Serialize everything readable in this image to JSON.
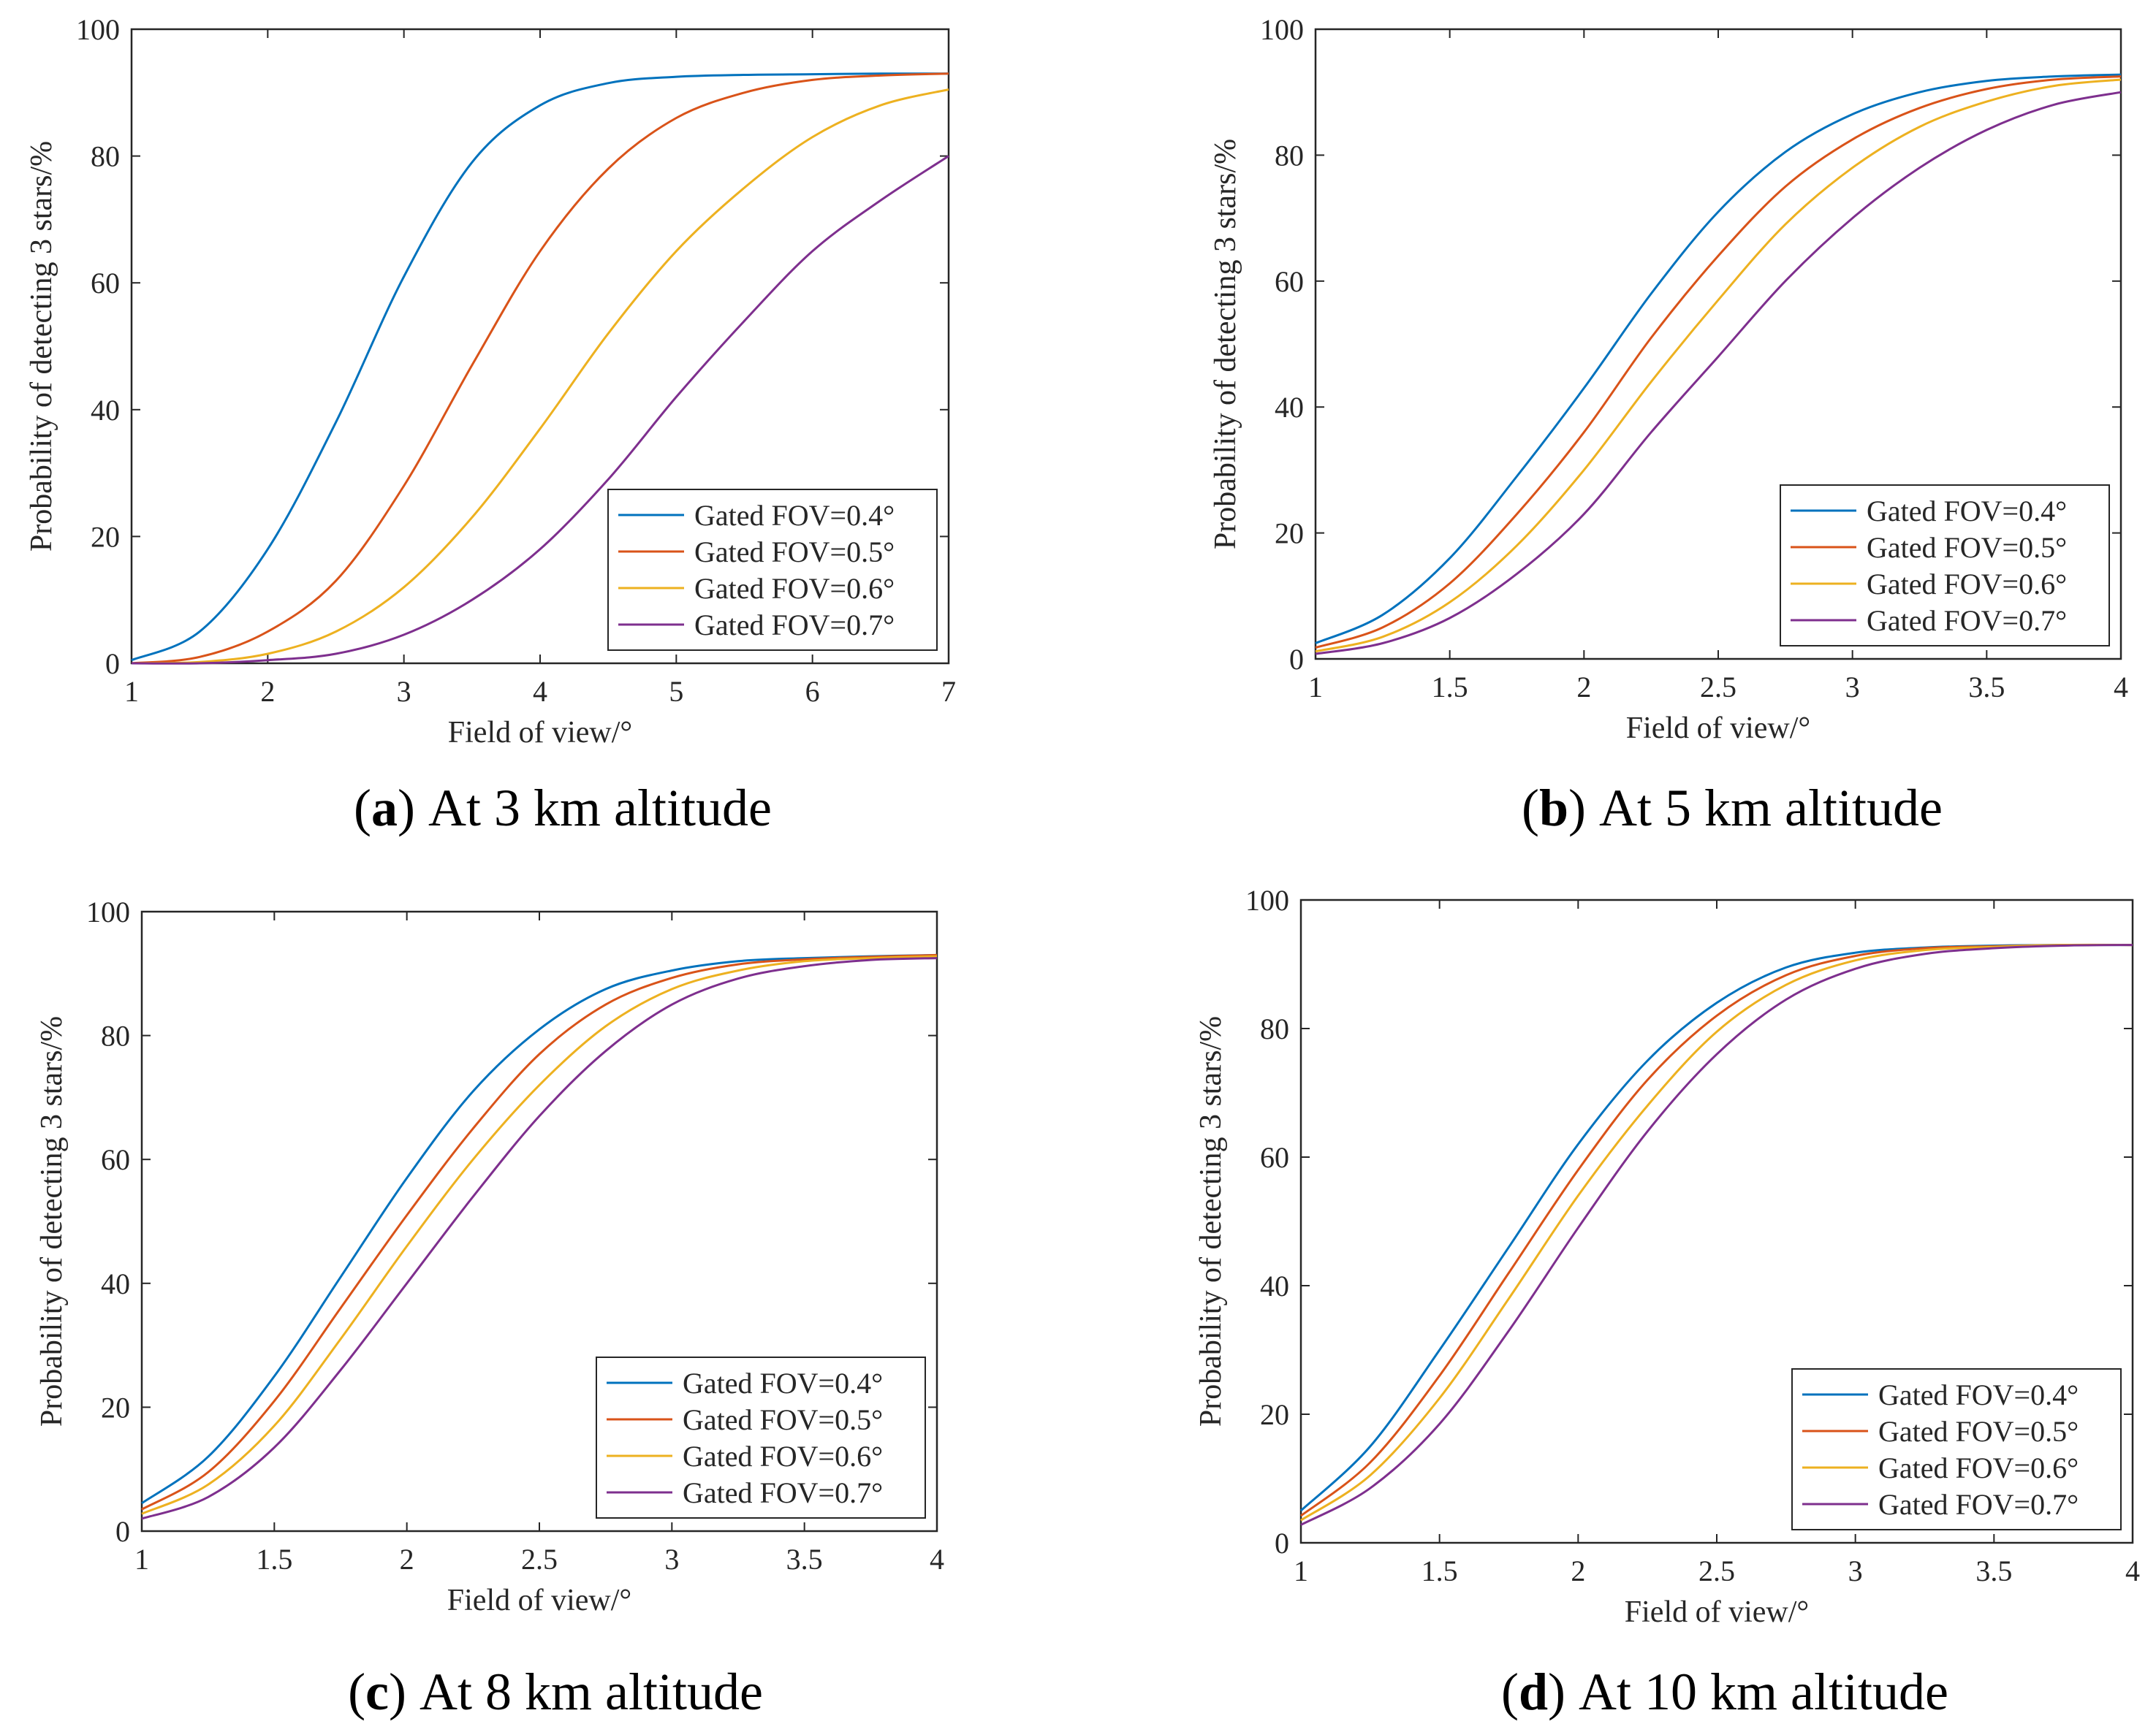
{
  "colors": {
    "axis": "#262626",
    "series": [
      "#0072BD",
      "#D95319",
      "#EDB120",
      "#7E2F8E"
    ]
  },
  "chart_data": [
    {
      "type": "line",
      "panel": "a",
      "caption_label": "a",
      "caption_text": " At 3 km altitude",
      "title": "",
      "xlabel": "Field of view/°",
      "ylabel": "Probability of detecting 3 stars/%",
      "xlim": [
        1,
        7
      ],
      "ylim": [
        0,
        100
      ],
      "xticks": [
        1,
        2,
        3,
        4,
        5,
        6,
        7
      ],
      "xtick_labels": [
        "1",
        "2",
        "3",
        "4",
        "5",
        "6",
        "7"
      ],
      "yticks": [
        0,
        20,
        40,
        60,
        80,
        100
      ],
      "ytick_labels": [
        "0",
        "20",
        "40",
        "60",
        "80",
        "100"
      ],
      "grid": false,
      "legend_position": "bottom-right",
      "series": [
        {
          "name": "Gated FOV=0.4°",
          "x": [
            1,
            1.5,
            2,
            2.5,
            3,
            3.5,
            4,
            4.5,
            5,
            5.5,
            6,
            6.5,
            7
          ],
          "values": [
            0.5,
            5,
            18,
            38,
            61,
            79,
            88,
            91.5,
            92.5,
            92.8,
            92.9,
            93,
            93
          ]
        },
        {
          "name": "Gated FOV=0.5°",
          "x": [
            1,
            1.5,
            2,
            2.5,
            3,
            3.5,
            4,
            4.5,
            5,
            5.5,
            6,
            6.5,
            7
          ],
          "values": [
            0,
            1,
            5,
            13,
            28,
            47,
            65,
            78,
            86,
            90,
            92,
            92.7,
            93
          ]
        },
        {
          "name": "Gated FOV=0.6°",
          "x": [
            1,
            1.5,
            2,
            2.5,
            3,
            3.5,
            4,
            4.5,
            5,
            5.5,
            6,
            6.5,
            7
          ],
          "values": [
            0,
            0.2,
            1.5,
            5,
            12,
            23,
            37,
            52,
            65,
            75,
            83,
            88,
            90.5
          ]
        },
        {
          "name": "Gated FOV=0.7°",
          "x": [
            1,
            1.5,
            2,
            2.5,
            3,
            3.5,
            4,
            4.5,
            5,
            5.5,
            6,
            6.5,
            7
          ],
          "values": [
            0,
            0,
            0.5,
            1.5,
            4.5,
            10,
            18,
            29,
            42,
            54,
            65,
            73,
            80
          ]
        }
      ]
    },
    {
      "type": "line",
      "panel": "b",
      "caption_label": "b",
      "caption_text": " At 5 km altitude",
      "title": "",
      "xlabel": "Field of view/°",
      "ylabel": "Probability of detecting 3 stars/%",
      "xlim": [
        1,
        4
      ],
      "ylim": [
        0,
        100
      ],
      "xticks": [
        1,
        1.5,
        2,
        2.5,
        3,
        3.5,
        4
      ],
      "xtick_labels": [
        "1",
        "1.5",
        "2",
        "2.5",
        "3",
        "3.5",
        "4"
      ],
      "yticks": [
        0,
        20,
        40,
        60,
        80,
        100
      ],
      "ytick_labels": [
        "0",
        "20",
        "40",
        "60",
        "80",
        "100"
      ],
      "grid": false,
      "legend_position": "bottom-right",
      "series": [
        {
          "name": "Gated FOV=0.4°",
          "x": [
            1,
            1.25,
            1.5,
            1.75,
            2,
            2.25,
            2.5,
            2.75,
            3,
            3.25,
            3.5,
            3.75,
            4
          ],
          "values": [
            2.5,
            7,
            16,
            29,
            43,
            58,
            71,
            80.5,
            86.5,
            90,
            91.8,
            92.5,
            92.8
          ]
        },
        {
          "name": "Gated FOV=0.5°",
          "x": [
            1,
            1.25,
            1.5,
            1.75,
            2,
            2.25,
            2.5,
            2.75,
            3,
            3.25,
            3.5,
            3.75,
            4
          ],
          "values": [
            1.8,
            5,
            12,
            23,
            36,
            51,
            64,
            75,
            82.5,
            87.5,
            90.5,
            92,
            92.5
          ]
        },
        {
          "name": "Gated FOV=0.6°",
          "x": [
            1,
            1.25,
            1.5,
            1.75,
            2,
            2.25,
            2.5,
            2.75,
            3,
            3.25,
            3.5,
            3.75,
            4
          ],
          "values": [
            1.2,
            3.5,
            9,
            18,
            30,
            44,
            57,
            69,
            78,
            84.5,
            88.5,
            91,
            92
          ]
        },
        {
          "name": "Gated FOV=0.7°",
          "x": [
            1,
            1.25,
            1.5,
            1.75,
            2,
            2.25,
            2.5,
            2.75,
            3,
            3.25,
            3.5,
            3.75,
            4
          ],
          "values": [
            0.8,
            2.5,
            6.5,
            13.5,
            23,
            36,
            48,
            60,
            70,
            78,
            84,
            88,
            90
          ]
        }
      ]
    },
    {
      "type": "line",
      "panel": "c",
      "caption_label": "c",
      "caption_text": " At 8 km altitude",
      "title": "",
      "xlabel": "Field of view/°",
      "ylabel": "Probability of detecting 3 stars/%",
      "xlim": [
        1,
        4
      ],
      "ylim": [
        0,
        100
      ],
      "xticks": [
        1,
        1.5,
        2,
        2.5,
        3,
        3.5,
        4
      ],
      "xtick_labels": [
        "1",
        "1.5",
        "2",
        "2.5",
        "3",
        "3.5",
        "4"
      ],
      "yticks": [
        0,
        20,
        40,
        60,
        80,
        100
      ],
      "ytick_labels": [
        "0",
        "20",
        "40",
        "60",
        "80",
        "100"
      ],
      "grid": false,
      "legend_position": "bottom-right",
      "series": [
        {
          "name": "Gated FOV=0.4°",
          "x": [
            1,
            1.25,
            1.5,
            1.75,
            2,
            2.25,
            2.5,
            2.75,
            3,
            3.25,
            3.5,
            3.75,
            4
          ],
          "values": [
            4.5,
            12,
            25,
            41,
            57,
            71,
            81,
            87.5,
            90.5,
            92,
            92.5,
            92.8,
            93
          ]
        },
        {
          "name": "Gated FOV=0.5°",
          "x": [
            1,
            1.25,
            1.5,
            1.75,
            2,
            2.25,
            2.5,
            2.75,
            3,
            3.25,
            3.5,
            3.75,
            4
          ],
          "values": [
            3.5,
            9.5,
            21,
            36,
            51,
            65,
            77,
            85,
            89.3,
            91.5,
            92.3,
            92.7,
            93
          ]
        },
        {
          "name": "Gated FOV=0.6°",
          "x": [
            1,
            1.25,
            1.5,
            1.75,
            2,
            2.25,
            2.5,
            2.75,
            3,
            3.25,
            3.5,
            3.75,
            4
          ],
          "values": [
            2.8,
            7.5,
            17,
            31,
            46,
            60,
            72,
            81.5,
            87.5,
            90.5,
            92,
            92.5,
            92.8
          ]
        },
        {
          "name": "Gated FOV=0.7°",
          "x": [
            1,
            1.25,
            1.5,
            1.75,
            2,
            2.25,
            2.5,
            2.75,
            3,
            3.25,
            3.5,
            3.75,
            4
          ],
          "values": [
            2,
            5.5,
            13.5,
            26,
            40,
            54,
            67,
            77.5,
            85,
            89.2,
            91.2,
            92.2,
            92.5
          ]
        }
      ]
    },
    {
      "type": "line",
      "panel": "d",
      "caption_label": "d",
      "caption_text": " At 10 km altitude",
      "title": "",
      "xlabel": "Field of view/°",
      "ylabel": "Probability of detecting 3 stars/%",
      "xlim": [
        1,
        4
      ],
      "ylim": [
        0,
        100
      ],
      "xticks": [
        1,
        1.5,
        2,
        2.5,
        3,
        3.5,
        4
      ],
      "xtick_labels": [
        "1",
        "1.5",
        "2",
        "2.5",
        "3",
        "3.5",
        "4"
      ],
      "yticks": [
        0,
        20,
        40,
        60,
        80,
        100
      ],
      "ytick_labels": [
        "0",
        "20",
        "40",
        "60",
        "80",
        "100"
      ],
      "grid": false,
      "legend_position": "bottom-right",
      "series": [
        {
          "name": "Gated FOV=0.4°",
          "x": [
            1,
            1.25,
            1.5,
            1.75,
            2,
            2.25,
            2.5,
            2.75,
            3,
            3.25,
            3.5,
            3.75,
            4
          ],
          "values": [
            5,
            15,
            30,
            46,
            62,
            75,
            84,
            89.5,
            91.8,
            92.6,
            92.9,
            93,
            93
          ]
        },
        {
          "name": "Gated FOV=0.5°",
          "x": [
            1,
            1.25,
            1.5,
            1.75,
            2,
            2.25,
            2.5,
            2.75,
            3,
            3.25,
            3.5,
            3.75,
            4
          ],
          "values": [
            4.2,
            12.5,
            26,
            42,
            58,
            72,
            82,
            88.3,
            91.3,
            92.5,
            92.8,
            93,
            93
          ]
        },
        {
          "name": "Gated FOV=0.6°",
          "x": [
            1,
            1.25,
            1.5,
            1.75,
            2,
            2.25,
            2.5,
            2.75,
            3,
            3.25,
            3.5,
            3.75,
            4
          ],
          "values": [
            3.5,
            10.5,
            22.5,
            38,
            54,
            68,
            79.5,
            86.8,
            90.6,
            92.2,
            92.7,
            93,
            93
          ]
        },
        {
          "name": "Gated FOV=0.7°",
          "x": [
            1,
            1.25,
            1.5,
            1.75,
            2,
            2.25,
            2.5,
            2.75,
            3,
            3.25,
            3.5,
            3.75,
            4
          ],
          "values": [
            2.8,
            8.5,
            18.5,
            33,
            49,
            64,
            76,
            84.5,
            89.3,
            91.6,
            92.5,
            92.9,
            93
          ]
        }
      ]
    }
  ]
}
